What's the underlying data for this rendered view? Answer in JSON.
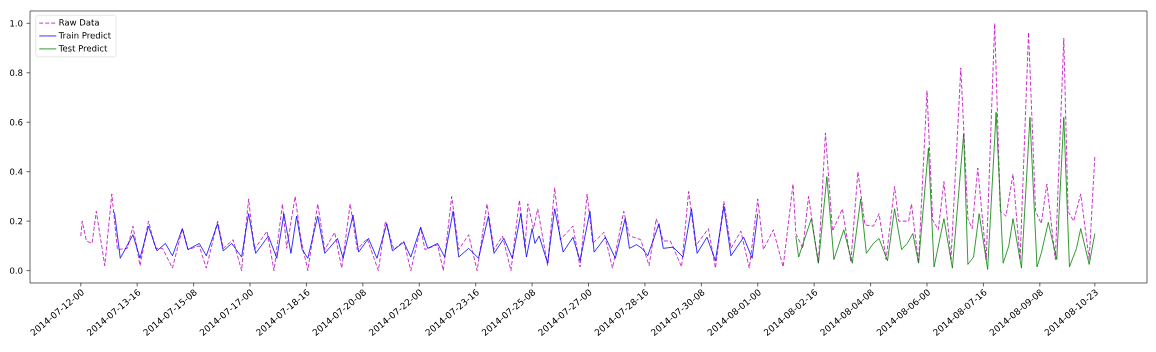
{
  "chart_data": {
    "type": "line",
    "legend": "top left",
    "grid": false,
    "xlim": [
      "2014-07-10T12:00",
      "2014-08-12T12:00"
    ],
    "ylim": [
      -0.05,
      1.05
    ],
    "xticks": [
      {
        "value": "2014-07-12T00:00",
        "label": "2014-07-12-00"
      },
      {
        "value": "2014-07-13T16:00",
        "label": "2014-07-13-16"
      },
      {
        "value": "2014-07-15T08:00",
        "label": "2014-07-15-08"
      },
      {
        "value": "2014-07-17T00:00",
        "label": "2014-07-17-00"
      },
      {
        "value": "2014-07-18T16:00",
        "label": "2014-07-18-16"
      },
      {
        "value": "2014-07-20T08:00",
        "label": "2014-07-20-08"
      },
      {
        "value": "2014-07-22T00:00",
        "label": "2014-07-22-00"
      },
      {
        "value": "2014-07-23T16:00",
        "label": "2014-07-23-16"
      },
      {
        "value": "2014-07-25T08:00",
        "label": "2014-07-25-08"
      },
      {
        "value": "2014-07-27T00:00",
        "label": "2014-07-27-00"
      },
      {
        "value": "2014-07-28T16:00",
        "label": "2014-07-28-16"
      },
      {
        "value": "2014-07-30T08:00",
        "label": "2014-07-30-08"
      },
      {
        "value": "2014-08-01T00:00",
        "label": "2014-08-01-00"
      },
      {
        "value": "2014-08-02T16:00",
        "label": "2014-08-02-16"
      },
      {
        "value": "2014-08-04T08:00",
        "label": "2014-08-04-08"
      },
      {
        "value": "2014-08-06T00:00",
        "label": "2014-08-06-00"
      },
      {
        "value": "2014-08-07T16:00",
        "label": "2014-08-07-16"
      },
      {
        "value": "2014-08-09T08:00",
        "label": "2014-08-09-08"
      },
      {
        "value": "2014-08-10T23:00",
        "label": "2014-08-10-23"
      }
    ],
    "yticks": [
      {
        "value": 0,
        "label": "0.0"
      },
      {
        "value": 0.2,
        "label": "0.2"
      },
      {
        "value": 0.4,
        "label": "0.4"
      },
      {
        "value": 0.6,
        "label": "0.6"
      },
      {
        "value": 0.8,
        "label": "0.8"
      },
      {
        "value": 1,
        "label": "1.0"
      }
    ],
    "series": [
      {
        "name": "Raw Data",
        "color": "#bf00bf",
        "line_style": "dashed",
        "x": [
          "2014-07-12T00:00",
          "2014-07-12T01:00",
          "2014-07-12T04:00",
          "2014-07-12T08:00",
          "2014-07-12T11:00",
          "2014-07-12T17:00",
          "2014-07-12T22:00",
          "2014-07-13T02:00",
          "2014-07-13T09:00",
          "2014-07-13T13:00",
          "2014-07-13T18:00",
          "2014-07-14T00:00",
          "2014-07-14T05:00",
          "2014-07-14T10:00",
          "2014-07-14T17:00",
          "2014-07-15T00:00",
          "2014-07-15T04:00",
          "2014-07-15T12:00",
          "2014-07-15T17:00",
          "2014-07-16T01:00",
          "2014-07-16T05:00",
          "2014-07-16T12:00",
          "2014-07-16T18:00",
          "2014-07-16T23:00",
          "2014-07-17T03:00",
          "2014-07-17T12:00",
          "2014-07-17T17:00",
          "2014-07-17T23:00",
          "2014-07-18T02:00",
          "2014-07-18T08:00",
          "2014-07-18T12:00",
          "2014-07-18T17:00",
          "2014-07-19T00:00",
          "2014-07-19T05:00",
          "2014-07-19T12:00",
          "2014-07-19T17:00",
          "2014-07-19T23:00",
          "2014-07-20T04:00",
          "2014-07-20T11:00",
          "2014-07-20T19:00",
          "2014-07-21T00:00",
          "2014-07-21T06:00",
          "2014-07-21T13:00",
          "2014-07-21T18:00",
          "2014-07-22T01:00",
          "2014-07-22T04:00",
          "2014-07-22T13:00",
          "2014-07-22T17:00",
          "2014-07-22T23:00",
          "2014-07-23T04:00",
          "2014-07-23T11:00",
          "2014-07-23T17:00",
          "2014-07-24T00:00",
          "2014-07-24T05:00",
          "2014-07-24T11:00",
          "2014-07-24T17:00",
          "2014-07-24T23:00",
          "2014-07-25T03:00",
          "2014-07-25T05:00",
          "2014-07-25T09:00",
          "2014-07-25T12:00",
          "2014-07-25T19:00",
          "2014-07-26T00:00",
          "2014-07-26T04:00",
          "2014-07-26T13:00",
          "2014-07-26T18:00",
          "2014-07-26T23:00",
          "2014-07-27T03:00",
          "2014-07-27T11:00",
          "2014-07-27T17:00",
          "2014-07-28T01:00",
          "2014-07-28T05:00",
          "2014-07-28T08:00",
          "2014-07-28T13:00",
          "2014-07-28T19:00",
          "2014-07-29T00:00",
          "2014-07-29T05:00",
          "2014-07-29T10:00",
          "2014-07-29T18:00",
          "2014-07-29T23:00",
          "2014-07-30T04:00",
          "2014-07-30T13:00",
          "2014-07-30T18:00",
          "2014-07-31T00:00",
          "2014-07-31T05:00",
          "2014-07-31T12:00",
          "2014-07-31T18:00",
          "2014-08-01T00:00",
          "2014-08-01T04:00",
          "2014-08-01T11:00",
          "2014-08-01T18:00",
          "2014-08-02T01:00",
          "2014-08-02T03:00",
          "2014-08-02T08:00",
          "2014-08-02T12:00",
          "2014-08-02T19:00",
          "2014-08-03T00:00",
          "2014-08-03T05:00",
          "2014-08-03T12:00",
          "2014-08-03T18:00",
          "2014-08-03T23:00",
          "2014-08-04T04:00",
          "2014-08-04T10:00",
          "2014-08-04T14:00",
          "2014-08-04T19:00",
          "2014-08-05T01:00",
          "2014-08-05T04:00",
          "2014-08-05T11:00",
          "2014-08-05T13:00",
          "2014-08-05T18:00",
          "2014-08-06T00:00",
          "2014-08-06T04:00",
          "2014-08-06T08:00",
          "2014-08-06T12:00",
          "2014-08-06T17:00",
          "2014-08-07T00:00",
          "2014-08-07T05:00",
          "2014-08-07T08:00",
          "2014-08-07T12:00",
          "2014-08-07T18:00",
          "2014-08-08T00:00",
          "2014-08-08T04:00",
          "2014-08-08T08:00",
          "2014-08-08T13:00",
          "2014-08-08T18:00",
          "2014-08-09T00:00",
          "2014-08-09T05:00",
          "2014-08-09T09:00",
          "2014-08-09T13:00",
          "2014-08-09T19:00",
          "2014-08-10T01:00",
          "2014-08-10T04:00",
          "2014-08-10T08:00",
          "2014-08-10T13:00",
          "2014-08-10T19:00",
          "2014-08-10T23:00"
        ],
        "values": [
          0.14,
          0.2,
          0.12,
          0.11,
          0.24,
          0.02,
          0.31,
          0.085,
          0.09,
          0.18,
          0.02,
          0.2,
          0.09,
          0.09,
          0.01,
          0.17,
          0.085,
          0.1,
          0.01,
          0.2,
          0.09,
          0.125,
          0,
          0.29,
          0.085,
          0.16,
          0,
          0.27,
          0.09,
          0.3,
          0.13,
          0,
          0.27,
          0.085,
          0.155,
          0.01,
          0.27,
          0.085,
          0.13,
          0,
          0.2,
          0.085,
          0.12,
          0,
          0.175,
          0.085,
          0.105,
          0,
          0.3,
          0.085,
          0.145,
          0,
          0.27,
          0.085,
          0.14,
          0,
          0.285,
          0.09,
          0.27,
          0.17,
          0.25,
          0.02,
          0.335,
          0.125,
          0.18,
          0.015,
          0.31,
          0.11,
          0.155,
          0.01,
          0.24,
          0.14,
          0.135,
          0.125,
          0.02,
          0.21,
          0.12,
          0.12,
          0.015,
          0.32,
          0.1,
          0.17,
          0.01,
          0.28,
          0.09,
          0.16,
          0.01,
          0.29,
          0.085,
          0.165,
          0.015,
          0.35,
          0.15,
          0.09,
          0.3,
          0.03,
          0.557,
          0.16,
          0.25,
          0.035,
          0.4,
          0.185,
          0.18,
          0.23,
          0.045,
          0.34,
          0.2,
          0.2,
          0.27,
          0.03,
          0.727,
          0.205,
          0.165,
          0.36,
          0.045,
          0.82,
          0.21,
          0.17,
          0.415,
          0.045,
          1.0,
          0.24,
          0.22,
          0.39,
          0.045,
          0.963,
          0.24,
          0.19,
          0.35,
          0.045,
          0.94,
          0.24,
          0.2,
          0.31,
          0.045,
          0.463
        ]
      },
      {
        "name": "Train Predict",
        "color": "#0000ff",
        "line_style": "solid",
        "x": [
          "2014-07-12T23:00",
          "2014-07-13T00:00",
          "2014-07-13T04:00",
          "2014-07-13T13:00",
          "2014-07-13T18:00",
          "2014-07-14T00:00",
          "2014-07-14T06:00",
          "2014-07-14T12:00",
          "2014-07-14T17:00",
          "2014-07-15T00:00",
          "2014-07-15T04:00",
          "2014-07-15T12:00",
          "2014-07-15T17:00",
          "2014-07-16T01:00",
          "2014-07-16T05:00",
          "2014-07-16T11:00",
          "2014-07-16T18:00",
          "2014-07-16T23:00",
          "2014-07-17T04:00",
          "2014-07-17T13:00",
          "2014-07-17T19:00",
          "2014-07-18T00:00",
          "2014-07-18T05:00",
          "2014-07-18T09:00",
          "2014-07-18T13:00",
          "2014-07-18T17:00",
          "2014-07-19T00:00",
          "2014-07-19T05:00",
          "2014-07-19T14:00",
          "2014-07-19T18:00",
          "2014-07-20T01:00",
          "2014-07-20T05:00",
          "2014-07-20T12:00",
          "2014-07-20T18:00",
          "2014-07-21T01:00",
          "2014-07-21T05:00",
          "2014-07-21T13:00",
          "2014-07-21T18:00",
          "2014-07-22T01:00",
          "2014-07-22T06:00",
          "2014-07-22T13:00",
          "2014-07-22T18:00",
          "2014-07-23T00:00",
          "2014-07-23T04:00",
          "2014-07-23T11:00",
          "2014-07-23T18:00",
          "2014-07-24T01:00",
          "2014-07-24T05:00",
          "2014-07-24T12:00",
          "2014-07-24T18:00",
          "2014-07-25T00:00",
          "2014-07-25T04:00",
          "2014-07-25T08:00",
          "2014-07-25T10:00",
          "2014-07-25T13:00",
          "2014-07-25T19:00",
          "2014-07-26T00:00",
          "2014-07-26T06:00",
          "2014-07-26T13:00",
          "2014-07-26T18:00",
          "2014-07-27T01:00",
          "2014-07-27T04:00",
          "2014-07-27T12:00",
          "2014-07-27T19:00",
          "2014-07-28T02:00",
          "2014-07-28T05:00",
          "2014-07-28T10:00",
          "2014-07-28T14:00",
          "2014-07-28T18:00",
          "2014-07-29T02:00",
          "2014-07-29T05:00",
          "2014-07-29T12:00",
          "2014-07-29T19:00",
          "2014-07-30T01:00",
          "2014-07-30T05:00",
          "2014-07-30T12:00",
          "2014-07-30T18:00",
          "2014-07-31T00:00",
          "2014-07-31T05:00",
          "2014-07-31T14:00",
          "2014-07-31T20:00",
          "2014-08-01T00:00"
        ],
        "values": [
          0.24,
          0.23,
          0.05,
          0.145,
          0.05,
          0.18,
          0.08,
          0.11,
          0.06,
          0.17,
          0.085,
          0.11,
          0.06,
          0.19,
          0.08,
          0.11,
          0.055,
          0.23,
          0.07,
          0.14,
          0.05,
          0.23,
          0.07,
          0.22,
          0.085,
          0.05,
          0.22,
          0.07,
          0.13,
          0.05,
          0.225,
          0.075,
          0.13,
          0.05,
          0.19,
          0.08,
          0.115,
          0.055,
          0.175,
          0.09,
          0.11,
          0.055,
          0.24,
          0.055,
          0.09,
          0.05,
          0.22,
          0.07,
          0.13,
          0.05,
          0.23,
          0.055,
          0.17,
          0.11,
          0.14,
          0.03,
          0.25,
          0.075,
          0.135,
          0.04,
          0.24,
          0.075,
          0.135,
          0.05,
          0.21,
          0.09,
          0.105,
          0.09,
          0.06,
          0.19,
          0.09,
          0.095,
          0.055,
          0.25,
          0.07,
          0.135,
          0.04,
          0.26,
          0.06,
          0.135,
          0.05,
          0.23
        ]
      },
      {
        "name": "Test Predict",
        "color": "#008000",
        "line_style": "solid",
        "x": [
          "2014-08-02T03:00",
          "2014-08-02T05:00",
          "2014-08-02T14:00",
          "2014-08-02T19:00",
          "2014-08-03T01:00",
          "2014-08-03T06:00",
          "2014-08-03T13:00",
          "2014-08-03T19:00",
          "2014-08-04T01:00",
          "2014-08-04T05:00",
          "2014-08-04T10:00",
          "2014-08-04T14:00",
          "2014-08-04T20:00",
          "2014-08-05T01:00",
          "2014-08-05T06:00",
          "2014-08-05T10:00",
          "2014-08-05T14:00",
          "2014-08-05T18:00",
          "2014-08-06T01:00",
          "2014-08-06T05:00",
          "2014-08-06T12:00",
          "2014-08-06T18:00",
          "2014-08-07T02:00",
          "2014-08-07T05:00",
          "2014-08-07T09:00",
          "2014-08-07T13:00",
          "2014-08-07T19:00",
          "2014-08-08T01:00",
          "2014-08-08T06:00",
          "2014-08-08T10:00",
          "2014-08-08T13:00",
          "2014-08-08T19:00",
          "2014-08-09T01:00",
          "2014-08-09T06:00",
          "2014-08-09T09:00",
          "2014-08-09T14:00",
          "2014-08-09T20:00",
          "2014-08-10T01:00",
          "2014-08-10T05:00",
          "2014-08-10T10:00",
          "2014-08-10T13:00",
          "2014-08-10T19:00",
          "2014-08-10T23:00"
        ],
        "values": [
          0.14,
          0.055,
          0.21,
          0.03,
          0.38,
          0.045,
          0.165,
          0.03,
          0.29,
          0.07,
          0.11,
          0.13,
          0.04,
          0.25,
          0.085,
          0.11,
          0.15,
          0.03,
          0.495,
          0.015,
          0.21,
          0.01,
          0.553,
          0.025,
          0.055,
          0.23,
          0.005,
          0.64,
          0.03,
          0.1,
          0.21,
          0.01,
          0.62,
          0.015,
          0.07,
          0.195,
          0.045,
          0.62,
          0.015,
          0.09,
          0.17,
          0.025,
          0.15
        ]
      }
    ]
  }
}
